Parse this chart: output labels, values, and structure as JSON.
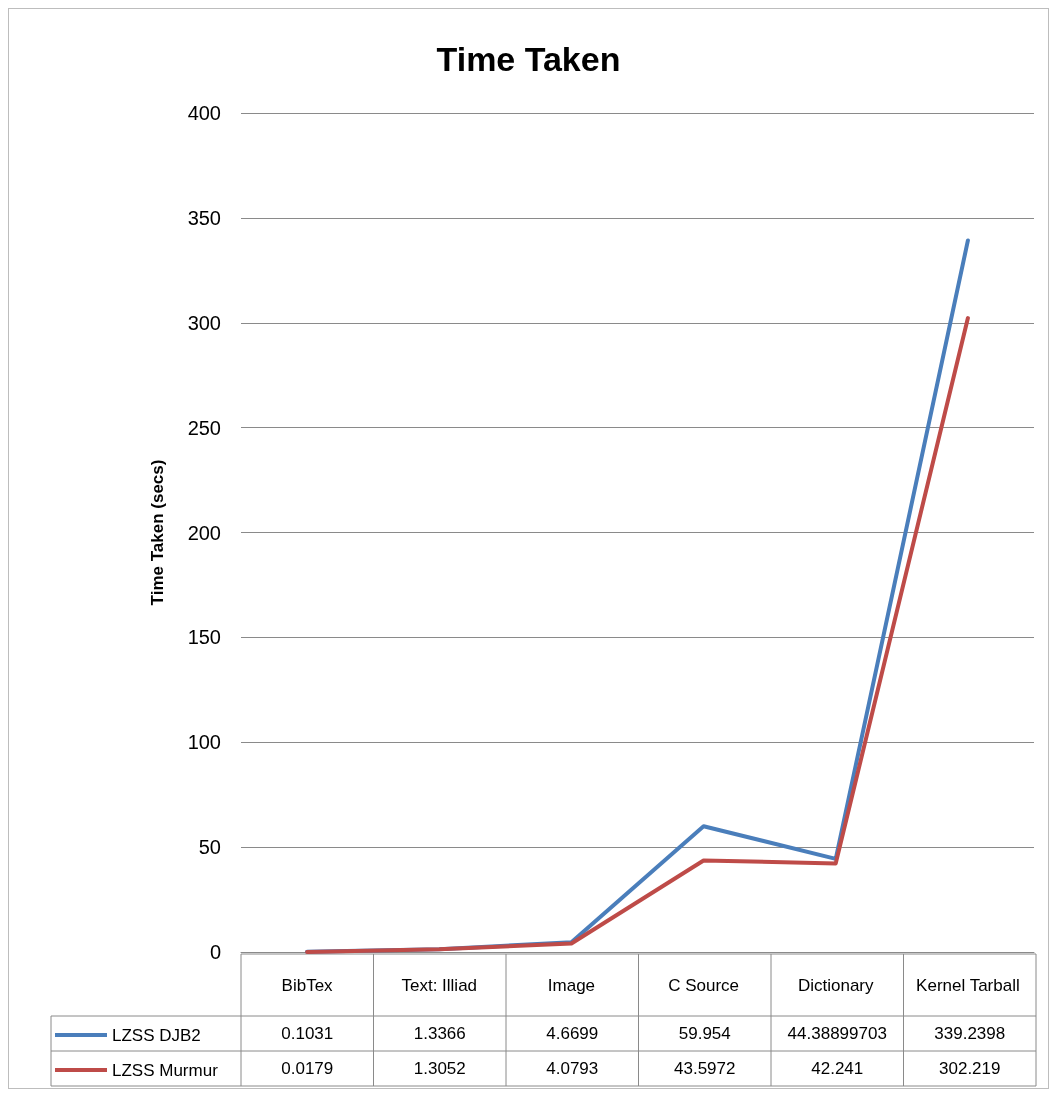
{
  "chart_data": {
    "type": "line",
    "title": "Time Taken",
    "ylabel": "Time Taken (secs)",
    "categories": [
      "BibTex",
      "Text: Illiad",
      "Image",
      "C Source",
      "Dictionary",
      "Kernel Tarball"
    ],
    "series": [
      {
        "name": "LZSS DJB2",
        "color": "#4a7ebb",
        "values": [
          0.1031,
          1.3366,
          4.6699,
          59.954,
          44.38899703,
          339.2398
        ]
      },
      {
        "name": "LZSS Murmur",
        "color": "#be4b48",
        "values": [
          0.0179,
          1.3052,
          4.0793,
          43.5972,
          42.241,
          302.219
        ]
      }
    ],
    "ylim": [
      0,
      400
    ],
    "yticks": [
      0,
      50,
      100,
      150,
      200,
      250,
      300,
      350,
      400
    ],
    "grid": "y",
    "legend": "bottom",
    "marker": "none",
    "line_style": "solid",
    "data_labels": true
  }
}
